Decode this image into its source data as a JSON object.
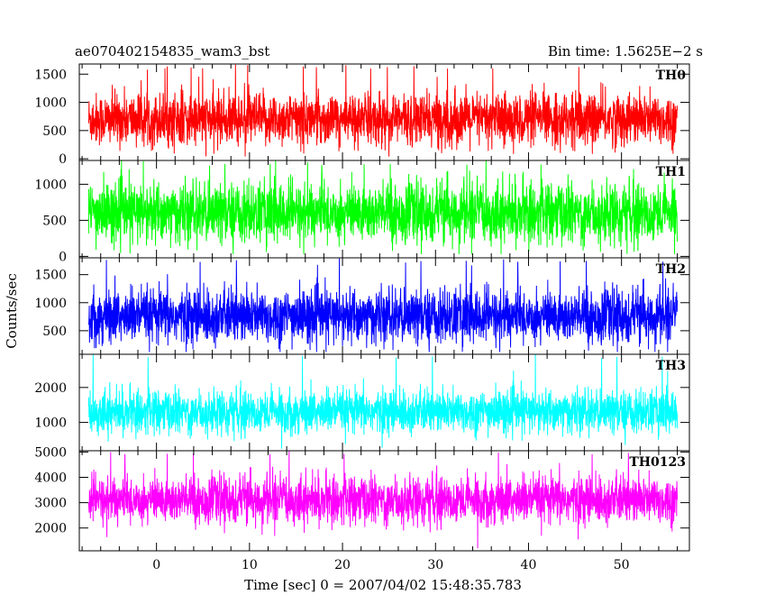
{
  "header": {
    "left_title": "ae070402154835_wam3_bst",
    "right_title": "Bin time: 1.5625E−2 s"
  },
  "chart_data": {
    "type": "line",
    "title": "ae070402154835_wam3_bst",
    "subtitle": "Bin time: 1.5625E−2 s",
    "xlabel": "Time [sec] 0 = 2007/04/02 15:48:35.783",
    "ylabel": "Counts/sec",
    "xlim": [
      -8.3,
      57.3
    ],
    "data_x_range": [
      -7.3,
      56.0
    ],
    "bin_time_s": 0.015625,
    "x_ticks": [
      0,
      10,
      20,
      30,
      40,
      50
    ],
    "x_tick_labels": [
      "0",
      "10",
      "20",
      "30",
      "40",
      "50"
    ],
    "grid": false,
    "legend": "none",
    "panels": [
      {
        "name": "TH0",
        "color": "#ff0000",
        "ylim": [
          -30,
          1680
        ],
        "y_ticks": [
          0,
          500,
          1000,
          1500
        ],
        "y_tick_labels": [
          "0",
          "500",
          "1000",
          "1500"
        ],
        "mean": 700,
        "spread": 420,
        "min": 40,
        "max": 1680
      },
      {
        "name": "TH1",
        "color": "#00ff00",
        "ylim": [
          -20,
          1330
        ],
        "y_ticks": [
          0,
          500,
          1000
        ],
        "y_tick_labels": [
          "0",
          "500",
          "1000"
        ],
        "mean": 600,
        "spread": 380,
        "min": 30,
        "max": 1330
      },
      {
        "name": "TH2",
        "color": "#0000ff",
        "ylim": [
          80,
          1800
        ],
        "y_ticks": [
          500,
          1000,
          1500
        ],
        "y_tick_labels": [
          "500",
          "1000",
          "1500"
        ],
        "mean": 750,
        "spread": 440,
        "min": 120,
        "max": 1800
      },
      {
        "name": "TH3",
        "color": "#00ffff",
        "ylim": [
          190,
          2950
        ],
        "y_ticks": [
          1000,
          2000
        ],
        "y_tick_labels": [
          "1000",
          "2000"
        ],
        "mean": 1300,
        "spread": 560,
        "min": 250,
        "max": 2950
      },
      {
        "name": "TH0123",
        "color": "#ff00ff",
        "ylim": [
          1100,
          5050
        ],
        "y_ticks": [
          2000,
          3000,
          4000,
          5000
        ],
        "y_tick_labels": [
          "2000",
          "3000",
          "4000",
          "5000"
        ],
        "mean": 3100,
        "spread": 850,
        "min": 1200,
        "max": 5050
      }
    ]
  }
}
